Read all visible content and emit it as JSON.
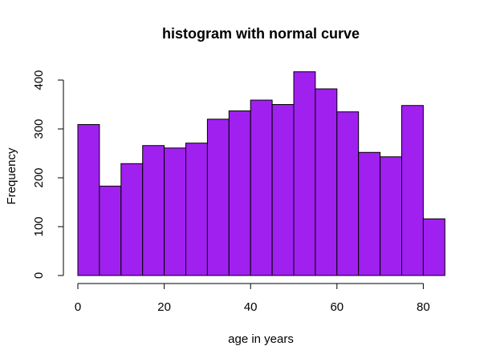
{
  "chart_data": {
    "type": "bar",
    "title": "histogram with normal curve",
    "xlabel": "age in years",
    "ylabel": "Frequency",
    "bar_color": "#A020F0",
    "bins": [
      {
        "start": 0,
        "end": 5,
        "count": 309
      },
      {
        "start": 5,
        "end": 10,
        "count": 183
      },
      {
        "start": 10,
        "end": 15,
        "count": 229
      },
      {
        "start": 15,
        "end": 20,
        "count": 266
      },
      {
        "start": 20,
        "end": 25,
        "count": 261
      },
      {
        "start": 25,
        "end": 30,
        "count": 271
      },
      {
        "start": 30,
        "end": 35,
        "count": 320
      },
      {
        "start": 35,
        "end": 40,
        "count": 337
      },
      {
        "start": 40,
        "end": 45,
        "count": 359
      },
      {
        "start": 45,
        "end": 50,
        "count": 350
      },
      {
        "start": 50,
        "end": 55,
        "count": 417
      },
      {
        "start": 55,
        "end": 60,
        "count": 382
      },
      {
        "start": 60,
        "end": 65,
        "count": 335
      },
      {
        "start": 65,
        "end": 70,
        "count": 252
      },
      {
        "start": 70,
        "end": 75,
        "count": 243
      },
      {
        "start": 75,
        "end": 80,
        "count": 348
      },
      {
        "start": 80,
        "end": 85,
        "count": 116
      }
    ],
    "xlim": [
      0,
      85
    ],
    "ylim": [
      0,
      417
    ],
    "x_ticks": [
      0,
      20,
      40,
      60,
      80
    ],
    "x_tick_labels": [
      "0",
      "20",
      "40",
      "60",
      "80"
    ],
    "y_ticks": [
      0,
      100,
      200,
      300,
      400
    ],
    "y_tick_labels": [
      "0",
      "100",
      "200",
      "300",
      "400"
    ],
    "grid": false
  }
}
